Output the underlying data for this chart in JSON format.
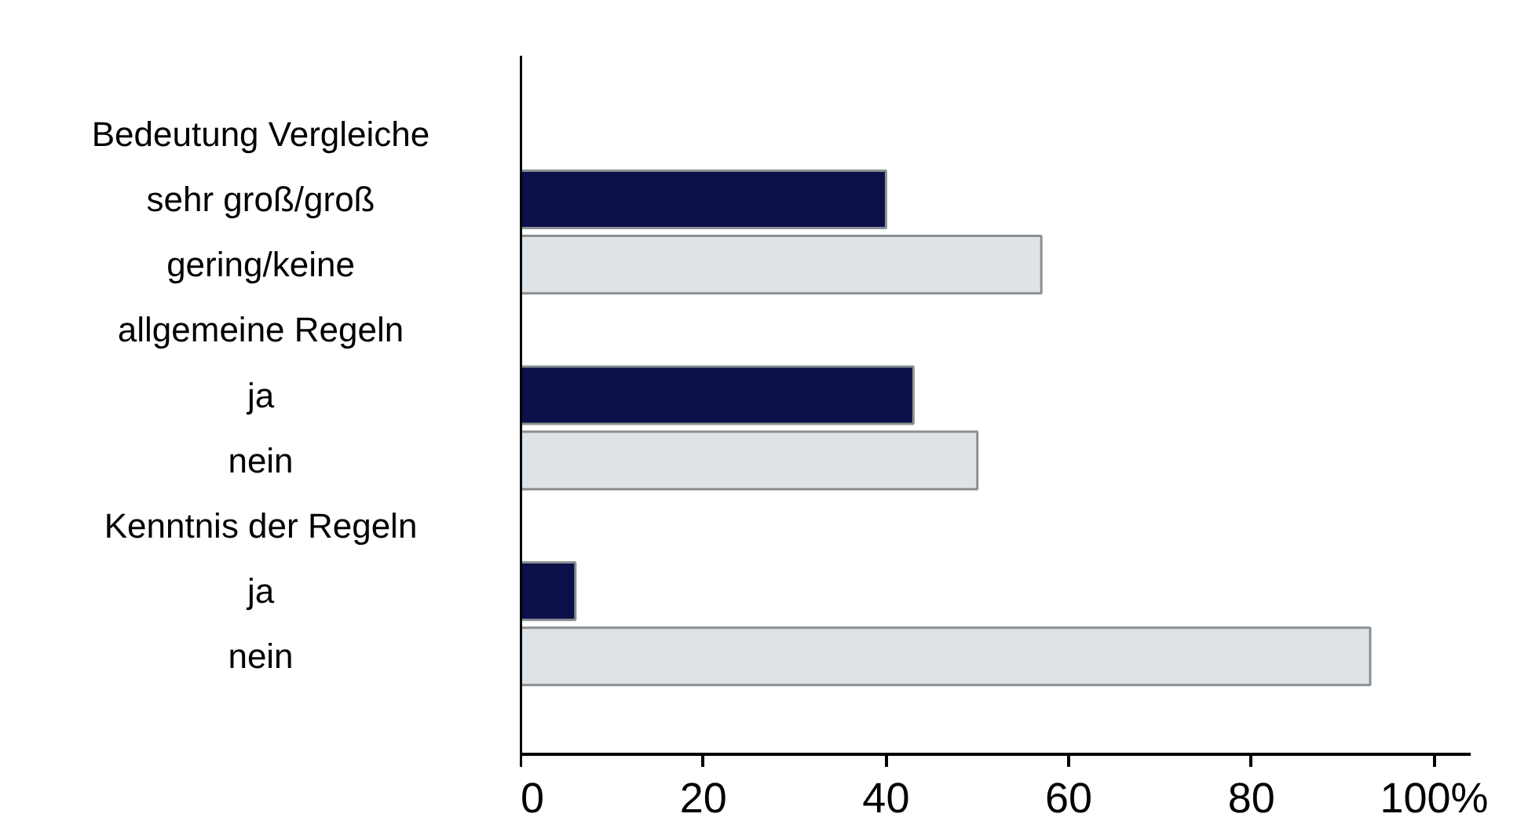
{
  "chart_data": {
    "type": "bar",
    "orientation": "horizontal",
    "categories": [
      "Bedeutung Vergleiche",
      "sehr groß/groß",
      "gering/keine",
      "allgemeine Regeln",
      "ja",
      "nein",
      "Kenntnis der Regeln",
      "ja",
      "nein"
    ],
    "values": [
      null,
      40,
      57,
      null,
      43,
      50,
      null,
      6,
      93
    ],
    "colors": [
      "#0b1048",
      "#0b1048",
      "#dde3e6",
      "#0b1048",
      "#0b1048",
      "#dde3e6",
      "#0b1048",
      "#0b1048",
      "#dde3e6"
    ],
    "xlim": [
      0,
      104
    ],
    "xticks": [
      {
        "value": 0,
        "label": "0"
      },
      {
        "value": 20,
        "label": "20"
      },
      {
        "value": 40,
        "label": "40"
      },
      {
        "value": 60,
        "label": "60"
      },
      {
        "value": 80,
        "label": "80"
      },
      {
        "value": 100,
        "label": "100%"
      }
    ],
    "grid": false
  }
}
